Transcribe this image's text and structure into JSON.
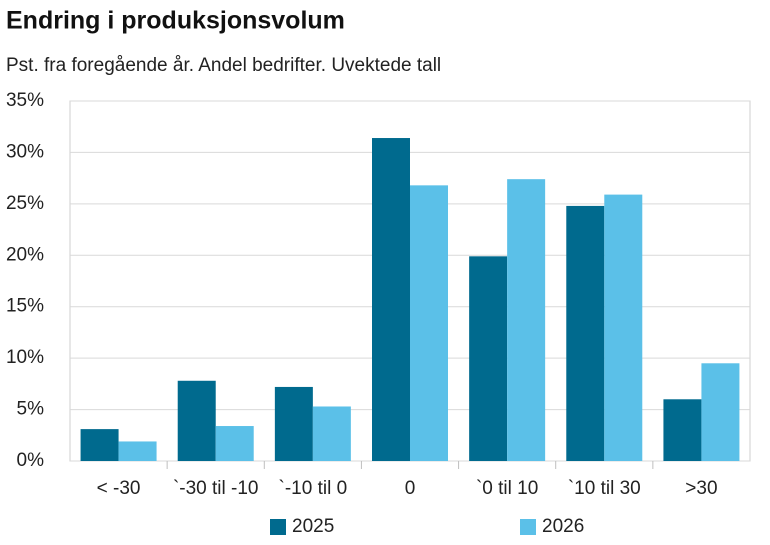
{
  "chart_data": {
    "type": "bar",
    "title": "Endring i produksjonsvolum",
    "subtitle": "Pst. fra foregående år. Andel bedrifter. Uvektede tall",
    "categories": [
      "< -30",
      "`-30 til -10",
      "`-10 til 0",
      "0",
      "`0 til 10",
      "`10 til 30",
      ">30"
    ],
    "series": [
      {
        "name": "2025",
        "color": "#006a8e",
        "values": [
          3.1,
          7.8,
          7.2,
          31.4,
          19.9,
          24.8,
          6.0
        ]
      },
      {
        "name": "2026",
        "color": "#5bc0e8",
        "values": [
          1.9,
          3.4,
          5.3,
          26.8,
          27.4,
          25.9,
          9.5
        ]
      }
    ],
    "ylim": [
      0,
      35
    ],
    "yticks": [
      {
        "value": 0,
        "label": "0%"
      },
      {
        "value": 5,
        "label": "5%"
      },
      {
        "value": 10,
        "label": "10%"
      },
      {
        "value": 15,
        "label": "15%"
      },
      {
        "value": 20,
        "label": "20%"
      },
      {
        "value": 25,
        "label": "25%"
      },
      {
        "value": 30,
        "label": "30%"
      },
      {
        "value": 35,
        "label": "35%"
      }
    ],
    "grid": true,
    "legend": "bottom"
  }
}
